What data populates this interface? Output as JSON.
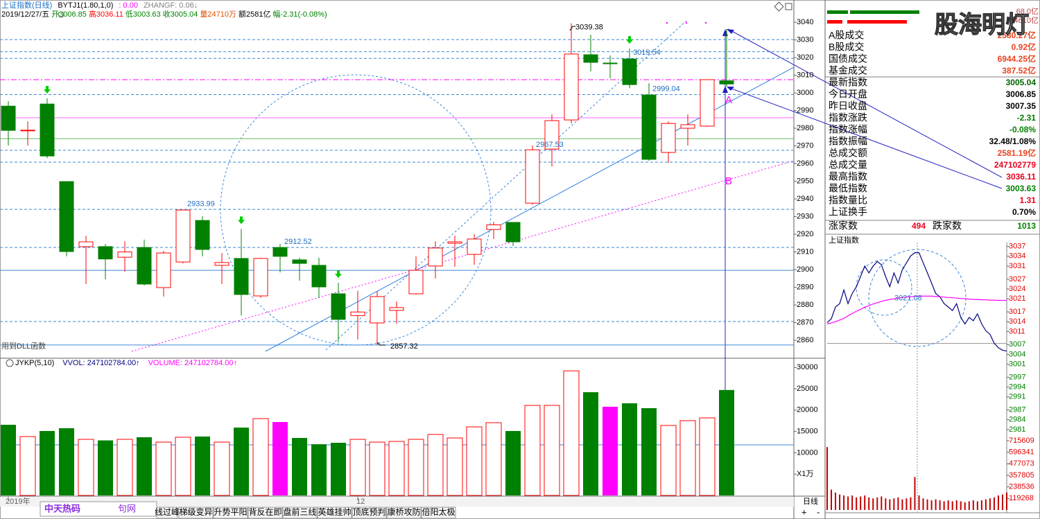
{
  "header": {
    "line1": [
      {
        "text": "上证指数(日线)",
        "color": "#1f6fbf"
      },
      {
        "text": "BYTJ1(1.80,1,0)",
        "color": "#000000"
      },
      {
        "text": ": 0.00",
        "color": "#ff00ff"
      },
      {
        "text": "ZHANGF: 0.06↓",
        "color": "#808080"
      }
    ],
    "line2": [
      {
        "text": "2019/12/27/五",
        "color": "#000000"
      },
      {
        "text": "开3006.85",
        "color": "#008000"
      },
      {
        "text": "高3036.11",
        "color": "#ff0000"
      },
      {
        "text": "低3003.63",
        "color": "#008000"
      },
      {
        "text": "收3005.04",
        "color": "#008000"
      },
      {
        "text": "量24710万",
        "color": "#e05000"
      },
      {
        "text": "额2581亿",
        "color": "#000000"
      },
      {
        "text": "幅-2.31(-0.08%)",
        "color": "#008000"
      }
    ],
    "volume_legend": [
      {
        "text": "JYKP(5,10)",
        "color": "#000000"
      },
      {
        "text": "VVOL: 247102784.00↑",
        "color": "#000080"
      },
      {
        "text": "VOLUME: 247102784.00↑",
        "color": "#ff00ff"
      }
    ]
  },
  "chart_data": [
    {
      "type": "candlestick",
      "categories": [
        "2019年",
        null,
        null,
        null,
        null,
        null,
        null,
        null,
        null,
        null,
        null,
        null,
        null,
        null,
        null,
        null,
        null,
        null,
        "12",
        null,
        null,
        null,
        null,
        null,
        null,
        null,
        null,
        null,
        null,
        null,
        null,
        null,
        null,
        null,
        null,
        null,
        null,
        null
      ],
      "open": [
        2992.5,
        2978.6,
        2993.7,
        2949.8,
        2913.0,
        2913.0,
        2907.0,
        2912.5,
        2889.8,
        2904.3,
        2927.8,
        2902.4,
        2906.3,
        2885.1,
        2912.5,
        2905.5,
        2902.4,
        2886.3,
        2874.0,
        2869.8,
        2876.9,
        2886.3,
        2902.0,
        2914.9,
        2908.6,
        2922.7,
        2926.7,
        2937.6,
        2968.2,
        2984.7,
        3021.6,
        3016.9,
        3019.2,
        2998.8,
        2966.3,
        2980.0,
        2981.2,
        3006.85
      ],
      "high": [
        2995.3,
        2983.9,
        2996.9,
        2949.8,
        2919.2,
        2914.5,
        2916.0,
        2917.0,
        2910.6,
        2933.99,
        2930.2,
        2909.4,
        2923.0,
        2906.7,
        2914.5,
        2906.7,
        2906.7,
        2892.5,
        2888.0,
        2887.8,
        2882.0,
        2907.5,
        2916.0,
        2919.2,
        2920.0,
        2927.0,
        2926.7,
        2970.2,
        2987.8,
        3039.38,
        3032.9,
        3021.2,
        3025.1,
        3005.5,
        2983.9,
        2987.8,
        3007.5,
        3036.11
      ],
      "low": [
        2970.2,
        2970.2,
        2963.1,
        2907.5,
        2891.8,
        2894.5,
        2898.8,
        2891.0,
        2884.7,
        2903.5,
        2907.5,
        2891.8,
        2874.1,
        2884.0,
        2898.4,
        2893.7,
        2883.9,
        2858.8,
        2860.4,
        2857.32,
        2869.4,
        2885.9,
        2894.9,
        2901.6,
        2902.7,
        2917.3,
        2913.3,
        2936.8,
        2958.4,
        2982.7,
        3012.2,
        3008.2,
        3002.7,
        2961.6,
        2960.4,
        2970.2,
        2980.8,
        3003.63
      ],
      "close": [
        2978.8,
        2978.9,
        2964.3,
        2910.2,
        2915.7,
        2906.0,
        2910.0,
        2891.8,
        2909.4,
        2933.7,
        2911.4,
        2904.0,
        2885.9,
        2906.3,
        2907.5,
        2903.5,
        2890.2,
        2871.8,
        2876.0,
        2884.7,
        2878.5,
        2899.6,
        2912.2,
        2915.7,
        2917.3,
        2925.3,
        2915.7,
        2967.8,
        2984.3,
        3022.0,
        3017.3,
        3016.5,
        3004.7,
        2962.4,
        2982.7,
        2982.0,
        3007.5,
        3005.04
      ],
      "up_color": "#ff0000",
      "down_color": "#008000",
      "ylim": [
        2850.6,
        3046.7
      ],
      "yticks": [
        2860,
        2870,
        2880,
        2890,
        2900,
        2910,
        2920,
        2930,
        2940,
        2950,
        2960,
        2970,
        2980,
        2990,
        3000,
        3010,
        3020,
        3030,
        3040
      ],
      "annotations": [
        3039.38,
        3019.54,
        2999.04,
        2967.53,
        2933.99,
        2912.52,
        2857.32
      ],
      "lines": [
        {
          "value": 3030.2,
          "color": "#3a86d6",
          "style": "dashed"
        },
        {
          "value": 3023.3,
          "color": "#3a86d6",
          "style": "dashed"
        },
        {
          "value": 3019.54,
          "color": "#3a86d6",
          "style": "dashed"
        },
        {
          "value": 3007.5,
          "color": "#ff00ff",
          "style": "dashdot"
        },
        {
          "value": 2999.04,
          "color": "#3a86d6",
          "style": "dashed"
        },
        {
          "value": 2985.9,
          "color": "#ff66ff",
          "style": "solid"
        },
        {
          "value": 2974.1,
          "color": "#66bb66",
          "style": "solid"
        },
        {
          "value": 2967.53,
          "color": "#3a86d6",
          "style": "dashed"
        },
        {
          "value": 2960.8,
          "color": "#3a86d6",
          "style": "dashed"
        },
        {
          "value": 2934.1,
          "color": "#3a86d6",
          "style": "dashed"
        },
        {
          "value": 2912.52,
          "color": "#3a86d6",
          "style": "dashed"
        },
        {
          "value": 2899.6,
          "color": "#3a86d6",
          "style": "solid"
        },
        {
          "value": 2870.6,
          "color": "#3a86d6",
          "style": "dashed"
        },
        {
          "value": 2857.32,
          "color": "#3a86d6",
          "style": "solid"
        }
      ],
      "marks": [
        "A",
        "B"
      ],
      "note": "用到DLL函数"
    },
    {
      "type": "bar",
      "values": [
        16560,
        13800,
        15100,
        15750,
        13150,
        12900,
        13150,
        13640,
        12500,
        13640,
        13800,
        12500,
        15900,
        18000,
        17200,
        13470,
        12000,
        12340,
        13150,
        12500,
        12660,
        13150,
        14290,
        13470,
        16070,
        17050,
        15100,
        21100,
        21100,
        29200,
        24190,
        20780,
        21590,
        20450,
        16400,
        17530,
        18180,
        24710
      ],
      "colors": [
        "#008000",
        "#ff0000",
        "#008000",
        "#008000",
        "#ff0000",
        "#008000",
        "#ff0000",
        "#008000",
        "#ff0000",
        "#ff0000",
        "#008000",
        "#ff0000",
        "#008000",
        "#ff0000",
        "#ff00ff",
        "#008000",
        "#008000",
        "#008000",
        "#ff0000",
        "#ff0000",
        "#ff0000",
        "#ff0000",
        "#ff0000",
        "#ff0000",
        "#ff0000",
        "#ff0000",
        "#008000",
        "#ff0000",
        "#ff0000",
        "#ff0000",
        "#008000",
        "#ff00ff",
        "#008000",
        "#008000",
        "#ff0000",
        "#ff0000",
        "#ff0000",
        "#008000"
      ],
      "hollow_color": "#ff0000",
      "ylim": [
        0,
        31500
      ],
      "yticks": [
        {
          "value": 5000,
          "label": "X1万"
        },
        10000,
        15000,
        20000,
        25000,
        30000
      ],
      "lines": [
        {
          "value": 11850,
          "color": "#3a86d6",
          "style": "solid"
        }
      ]
    },
    {
      "type": "line",
      "title": "上证指数",
      "series": [
        {
          "color": "#000080",
          "values": [
            3013.7,
            3014.9,
            3018.5,
            3019.5,
            3023.7,
            3019.5,
            3022.6,
            3024.7,
            3027.8,
            3031.0,
            3028.9,
            3031.0,
            3032.4,
            3031.4,
            3027.8,
            3024.7,
            3028.9,
            3025.8,
            3029.9,
            3032.0,
            3034.1,
            3035.1,
            3035.1,
            3032.0,
            3028.9,
            3025.8,
            3022.6,
            3021.6,
            3019.5,
            3018.5,
            3017.4,
            3019.5,
            3015.3,
            3013.3,
            3015.3,
            3014.3,
            3016.4,
            3013.3,
            3011.2,
            3010.1,
            3007.4,
            3006.0,
            3005.3,
            3005.0
          ]
        },
        {
          "color": "#ff00ff",
          "values": [
            3013.3,
            3013.6,
            3014,
            3014.5,
            3015,
            3015.8,
            3016.5,
            3017.2,
            3017.8,
            3018.4,
            3018.9,
            3019.4,
            3019.8,
            3020.2,
            3020.5,
            3020.8,
            3021,
            3021.2,
            3021.4,
            3021.5,
            3021.6,
            3021.7,
            3021.8,
            3021.8,
            3021.8,
            3021.8,
            3021.7,
            3021.6,
            3021.5,
            3021.4,
            3021.3,
            3021.2,
            3021.1,
            3021,
            3020.9,
            3020.8,
            3020.8,
            3020.7,
            3020.7,
            3020.6,
            3020.6,
            3020.5,
            3020.5,
            3020.5
          ]
        }
      ],
      "ref_line": 3007.35,
      "annotations": [
        3021.08
      ],
      "ylim": [
        2979.5,
        3038.2
      ],
      "yticks": [
        3037,
        3034,
        3031,
        3027,
        3024,
        3021,
        3017,
        3014,
        3011,
        3007,
        3004,
        3001,
        2997,
        2994,
        2991,
        2987,
        2984,
        2981
      ]
    },
    {
      "type": "bar",
      "values": [
        650000,
        210000,
        180000,
        160000,
        150000,
        140000,
        150000,
        130000,
        140000,
        150000,
        130000,
        120000,
        130000,
        140000,
        120000,
        110000,
        120000,
        130000,
        110000,
        120000,
        130000,
        340000,
        150000,
        120000,
        110000,
        100000,
        110000,
        100000,
        90000,
        100000,
        90000,
        100000,
        90000,
        80000,
        90000,
        100000,
        90000,
        100000,
        110000,
        120000,
        130000,
        150000,
        160000,
        180000
      ],
      "color": "#c00000",
      "ylim": [
        0,
        715609
      ],
      "yticks": [
        119268,
        238536,
        357805,
        477073,
        596341,
        715609
      ]
    }
  ],
  "info": {
    "watermark": "股海明灯",
    "top_values": [
      "68.0亿",
      "4610亿"
    ],
    "rows": [
      {
        "label": "A股成交",
        "value": "2580.27亿",
        "color": "#e8431e"
      },
      {
        "label": "B股成交",
        "value": "0.92亿",
        "color": "#e8431e"
      },
      {
        "label": "国债成交",
        "value": "6944.25亿",
        "color": "#e8431e"
      },
      {
        "label": "基金成交",
        "value": "387.52亿",
        "color": "#e8431e"
      },
      {
        "label": "最新指数",
        "value": "3005.04",
        "color": "#006400"
      },
      {
        "label": "今日开盘",
        "value": "3006.85",
        "color": "#000000"
      },
      {
        "label": "昨日收盘",
        "value": "3007.35",
        "color": "#000000"
      },
      {
        "label": "指数涨跌",
        "value": "-2.31",
        "color": "#008000"
      },
      {
        "label": "指数涨幅",
        "value": "-0.08%",
        "color": "#008000"
      },
      {
        "label": "指数振幅",
        "value": "32.48/1.08%",
        "color": "#000000"
      },
      {
        "label": "总成交额",
        "value": "2581.19亿",
        "color": "#e8431e"
      },
      {
        "label": "总成交量",
        "value": "247102779",
        "color": "#e8001e"
      },
      {
        "label": "最高指数",
        "value": "3036.11",
        "color": "#e8001e"
      },
      {
        "label": "最低指数",
        "value": "3003.63",
        "color": "#008000"
      },
      {
        "label": "指数量比",
        "value": "1.31",
        "color": "#e8001e"
      },
      {
        "label": "上证换手",
        "value": "0.70%",
        "color": "#000000"
      }
    ],
    "up_label": "涨家数",
    "up_count": "494",
    "down_label": "跌家数",
    "down_count": "1013"
  },
  "toolbar": {
    "logo": "中天热码",
    "logo_tail": "句网",
    "buttons": [
      "线过峰",
      "梯级变异",
      "升势平阳",
      "背反在即",
      "盘前三线",
      "英雄挂帅",
      "顶底预判",
      "康桥攻防",
      "倍阳太极"
    ],
    "period": "日线",
    "zoom_in": "+",
    "zoom_out": "-"
  }
}
